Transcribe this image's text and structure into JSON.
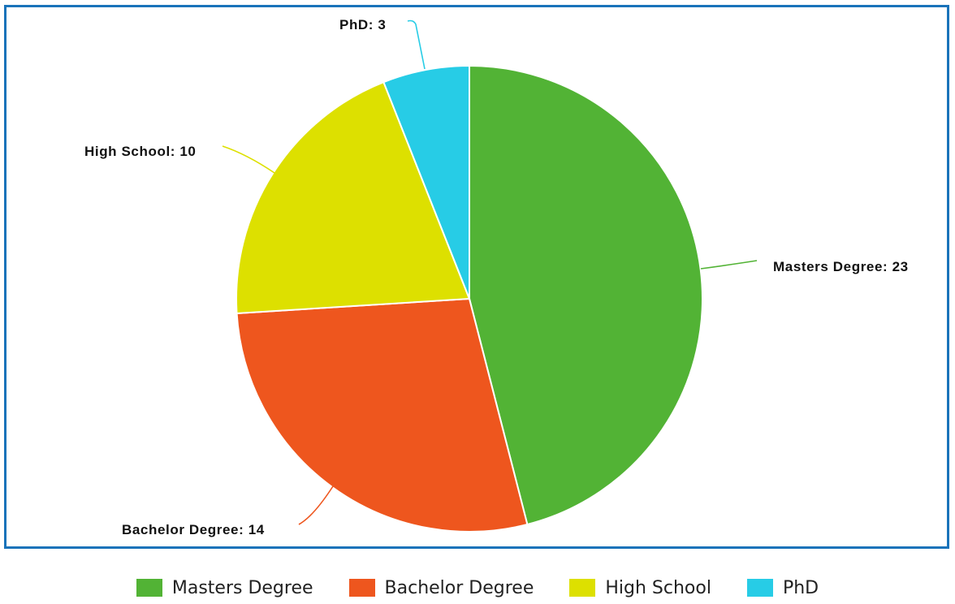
{
  "chart_data": {
    "type": "pie",
    "categories": [
      "Masters Degree",
      "Bachelor Degree",
      "High School",
      "PhD"
    ],
    "values": [
      23,
      14,
      10,
      3
    ],
    "labels": [
      "Masters Degree: 23",
      "Bachelor Degree: 14",
      "High School: 10",
      "PhD: 3"
    ],
    "colors": [
      "#52b335",
      "#ee561e",
      "#dde000",
      "#27cce6"
    ],
    "legend_placement": "bottom",
    "start_angle": "12 o'clock",
    "direction": "clockwise"
  },
  "legend": {
    "items": [
      {
        "label": "Masters Degree",
        "color": "#52b335"
      },
      {
        "label": "Bachelor Degree",
        "color": "#ee561e"
      },
      {
        "label": "High School",
        "color": "#dde000"
      },
      {
        "label": "PhD",
        "color": "#27cce6"
      }
    ]
  }
}
